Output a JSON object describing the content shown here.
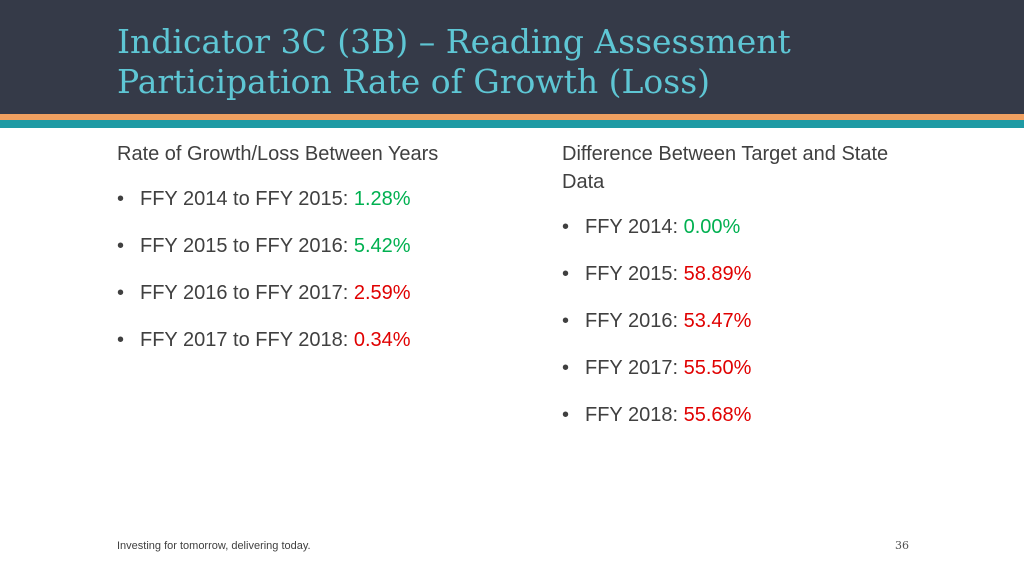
{
  "title": "Indicator 3C (3B) – Reading Assessment Participation Rate of Growth (Loss)",
  "colors": {
    "header_bg": "#353a48",
    "title": "#5ec6d4",
    "accent_orange": "#f0a060",
    "accent_teal": "#1f9aa4",
    "positive": "#00b050",
    "negative": "#e00000"
  },
  "left": {
    "heading": "Rate of Growth/Loss Between Years",
    "items": [
      {
        "label": "FFY 2014 to FFY 2015:",
        "value": "1.28%"
      },
      {
        "label": "FFY 2015 to FFY 2016:",
        "value": "5.42%"
      },
      {
        "label": "FFY 2016 to FFY 2017:",
        "value": "2.59%"
      },
      {
        "label": "FFY 2017 to FFY 2018:",
        "value": "0.34%"
      }
    ]
  },
  "right": {
    "heading": "Difference Between Target and State Data",
    "items": [
      {
        "label": "FFY 2014:",
        "value": "0.00%"
      },
      {
        "label": "FFY 2015:",
        "value": "58.89%"
      },
      {
        "label": "FFY 2016:",
        "value": "53.47%"
      },
      {
        "label": "FFY 2017:",
        "value": "55.50%"
      },
      {
        "label": "FFY 2018:",
        "value": "55.68%"
      }
    ]
  },
  "footer": {
    "tagline": "Investing for tomorrow, delivering today.",
    "page_number": "36"
  }
}
